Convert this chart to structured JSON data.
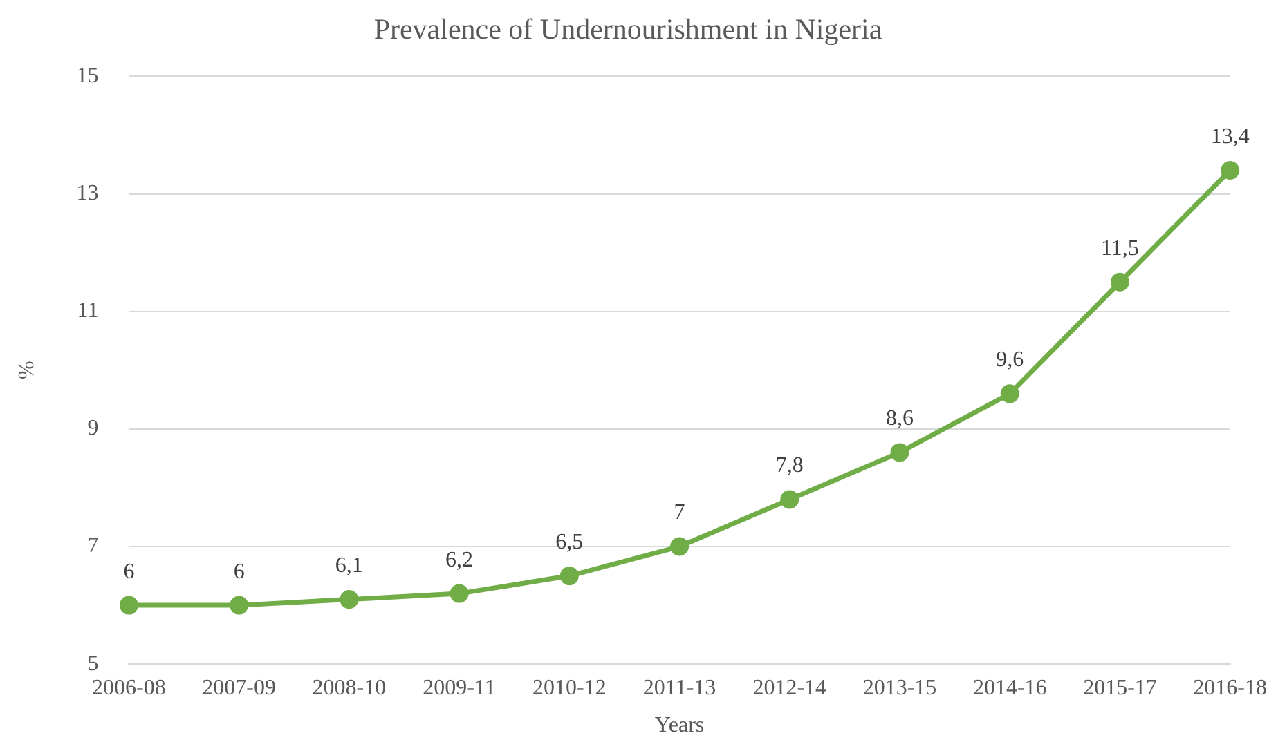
{
  "chart_data": {
    "type": "line",
    "title": "Prevalence of Undernourishment in Nigeria",
    "xlabel": "Years",
    "ylabel": "%",
    "categories": [
      "2006-08",
      "2007-09",
      "2008-10",
      "2009-11",
      "2010-12",
      "2011-13",
      "2012-14",
      "2013-15",
      "2014-16",
      "2015-17",
      "2016-18"
    ],
    "values": [
      6,
      6,
      6.1,
      6.2,
      6.5,
      7,
      7.8,
      8.6,
      9.6,
      11.5,
      13.4
    ],
    "value_labels": [
      "6",
      "6",
      "6,1",
      "6,2",
      "6,5",
      "7",
      "7,8",
      "8,6",
      "9,6",
      "11,5",
      "13,4"
    ],
    "color": "#70ad47",
    "ylim": [
      5,
      15
    ],
    "yticks": [
      5,
      7,
      9,
      11,
      13,
      15
    ],
    "grid": "y",
    "marker": "circle",
    "line_style": "solid",
    "legend": false
  }
}
